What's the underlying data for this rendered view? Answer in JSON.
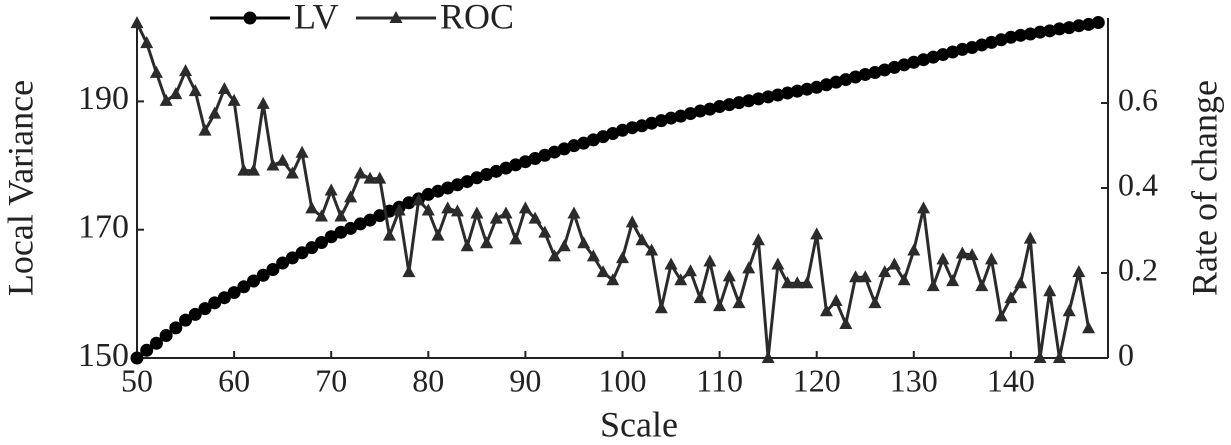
{
  "chart_data": {
    "type": "line",
    "xlabel": "Scale",
    "ylabel": "Local Variance",
    "y2label": "Rate of change",
    "x": [
      50,
      51,
      52,
      53,
      54,
      55,
      56,
      57,
      58,
      59,
      60,
      61,
      62,
      63,
      64,
      65,
      66,
      67,
      68,
      69,
      70,
      71,
      72,
      73,
      74,
      75,
      76,
      77,
      78,
      79,
      80,
      81,
      82,
      83,
      84,
      85,
      86,
      87,
      88,
      89,
      90,
      91,
      92,
      93,
      94,
      95,
      96,
      97,
      98,
      99,
      100,
      101,
      102,
      103,
      104,
      105,
      106,
      107,
      108,
      109,
      110,
      111,
      112,
      113,
      114,
      115,
      116,
      117,
      118,
      119,
      120,
      121,
      122,
      123,
      124,
      125,
      126,
      127,
      128,
      129,
      130,
      131,
      132,
      133,
      134,
      135,
      136,
      137,
      138,
      139,
      140,
      141,
      142,
      143,
      144,
      145,
      146,
      147,
      148,
      149
    ],
    "series": [
      {
        "name": "LV",
        "color": "#000000",
        "marker": "circle",
        "axis": "y",
        "values": [
          150.0,
          151.2,
          152.3,
          153.5,
          154.7,
          155.9,
          156.8,
          157.7,
          158.6,
          159.4,
          160.2,
          161.1,
          162.0,
          162.9,
          163.8,
          164.8,
          165.6,
          166.4,
          167.2,
          168.0,
          168.9,
          169.6,
          170.2,
          170.9,
          171.5,
          172.2,
          172.9,
          173.5,
          174.2,
          174.8,
          175.5,
          176.0,
          176.5,
          177.0,
          177.5,
          178.1,
          178.6,
          179.1,
          179.6,
          180.1,
          180.6,
          181.1,
          181.6,
          182.1,
          182.6,
          183.1,
          183.5,
          184.0,
          184.5,
          185.0,
          185.5,
          185.9,
          186.2,
          186.6,
          187.0,
          187.4,
          187.7,
          188.1,
          188.5,
          188.8,
          189.2,
          189.5,
          189.8,
          190.1,
          190.4,
          190.7,
          191.0,
          191.3,
          191.6,
          191.9,
          192.2,
          192.6,
          193.0,
          193.4,
          193.8,
          194.2,
          194.5,
          194.9,
          195.3,
          195.7,
          196.1,
          196.5,
          196.9,
          197.3,
          197.7,
          198.1,
          198.4,
          198.8,
          199.2,
          199.6,
          200.0,
          200.3,
          200.5,
          200.8,
          201.0,
          201.3,
          201.5,
          201.8,
          202.0,
          202.3
        ]
      },
      {
        "name": "ROC",
        "color": "#2b2b2b",
        "marker": "triangle",
        "axis": "y2",
        "values": [
          0.788,
          0.741,
          0.671,
          0.605,
          0.621,
          0.675,
          0.628,
          0.535,
          0.575,
          0.633,
          0.605,
          0.441,
          0.441,
          0.598,
          0.453,
          0.464,
          0.434,
          0.483,
          0.352,
          0.333,
          0.394,
          0.333,
          0.378,
          0.434,
          0.422,
          0.422,
          0.288,
          0.347,
          0.202,
          0.371,
          0.347,
          0.288,
          0.352,
          0.345,
          0.263,
          0.34,
          0.27,
          0.328,
          0.34,
          0.279,
          0.352,
          0.328,
          0.295,
          0.239,
          0.263,
          0.34,
          0.27,
          0.239,
          0.202,
          0.183,
          0.235,
          0.319,
          0.277,
          0.253,
          0.117,
          0.22,
          0.183,
          0.204,
          0.141,
          0.227,
          0.122,
          0.192,
          0.129,
          0.211,
          0.277,
          0.0,
          0.22,
          0.176,
          0.176,
          0.176,
          0.291,
          0.11,
          0.134,
          0.08,
          0.19,
          0.19,
          0.129,
          0.202,
          0.22,
          0.183,
          0.253,
          0.352,
          0.169,
          0.232,
          0.181,
          0.246,
          0.242,
          0.169,
          0.232,
          0.098,
          0.141,
          0.176,
          0.281,
          0.0,
          0.157,
          0.0,
          0.11,
          0.202,
          0.07,
          null
        ]
      }
    ],
    "xlim": [
      50,
      150
    ],
    "xticks": [
      50,
      60,
      70,
      80,
      90,
      100,
      110,
      120,
      130,
      140
    ],
    "ylim": [
      150,
      203
    ],
    "yticks": [
      150,
      170,
      190
    ],
    "y2lim": [
      0,
      0.8
    ],
    "y2ticks": [
      0,
      0.2,
      0.4,
      0.6
    ]
  }
}
